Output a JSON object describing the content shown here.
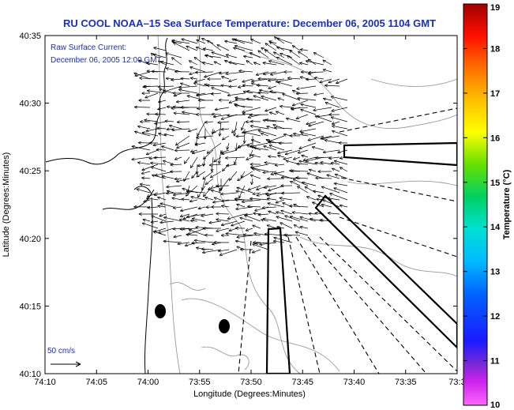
{
  "chart_data": {
    "type": "vector-field map",
    "title": "RU COOL   NOAA–15  Sea Surface Temperature:  December 06, 2005 1104 GMT",
    "legend": {
      "line1": "Raw Surface Current:",
      "line2": "December 06, 2005 12:00 GMT"
    },
    "xlabel": "Longitude (Degrees:Minutes)",
    "ylabel": "Latitude (Degrees:Minutes)",
    "x_ticks": [
      "74:10",
      "74:05",
      "74:00",
      "73:55",
      "73:50",
      "73:45",
      "73:40",
      "73:35",
      "73:3"
    ],
    "y_ticks": [
      "40:10",
      "40:15",
      "40:20",
      "40:25",
      "40:30",
      "40:35"
    ],
    "xlim_minutes_west": [
      10,
      30
    ],
    "ylim_minutes_north": [
      10,
      35
    ],
    "scale_label": "50 cm/s",
    "colorbar": {
      "label": "Temperature (°C)",
      "min": 10,
      "max": 19,
      "ticks": [
        "10",
        "11",
        "12",
        "13",
        "14",
        "15",
        "16",
        "17",
        "18",
        "19"
      ]
    },
    "colors": {
      "title": "#1a2fbf",
      "vectors": "#000000",
      "bathymetry": "#9a9a9a",
      "coast": "#000000"
    }
  }
}
